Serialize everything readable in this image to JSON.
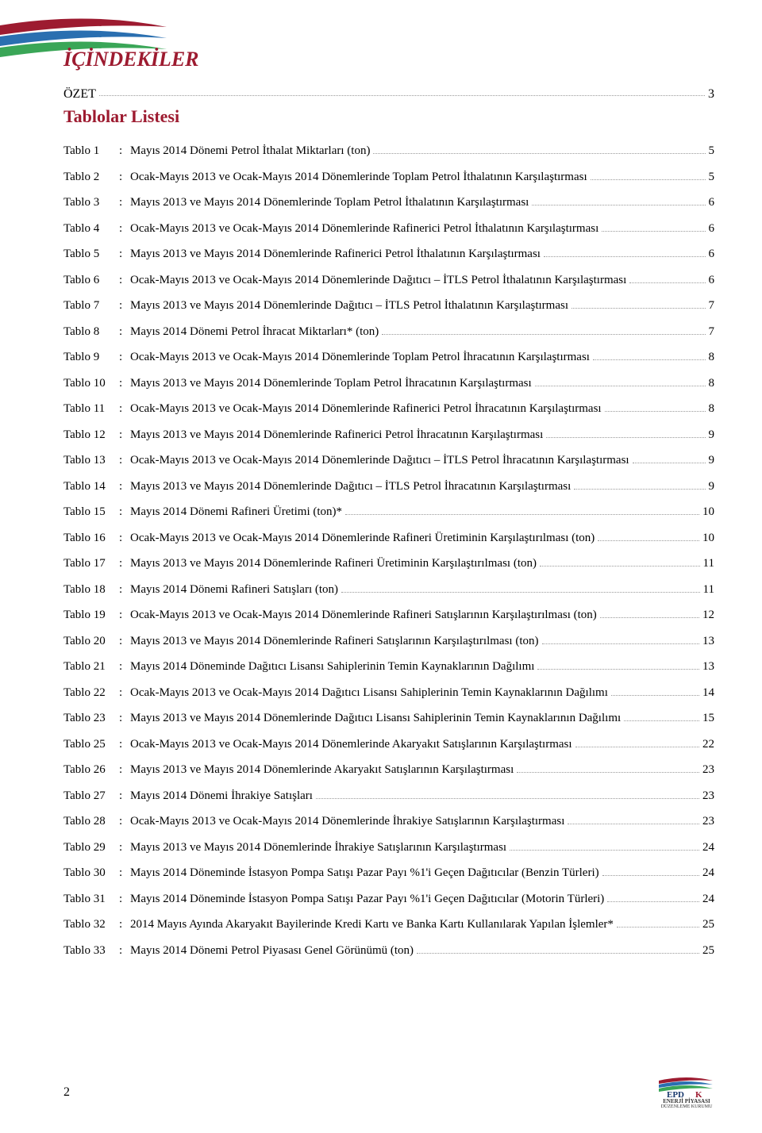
{
  "colors": {
    "brand_red": "#9d1b30",
    "logo_blue": "#2a6fb0",
    "logo_green": "#3aa657",
    "dot_color": "#999999",
    "text_color": "#111111",
    "bg": "#ffffff"
  },
  "page_title": "İÇİNDEKİLER",
  "ozet": {
    "label": "ÖZET",
    "page": "3"
  },
  "list_heading": "Tablolar Listesi",
  "footer": {
    "page_number": "2",
    "logo_text_top": "EPD",
    "logo_text_bottom": "ENERJİ PİYASASI",
    "logo_text_sub": "DÜZENLEME KURUMU"
  },
  "toc": [
    {
      "label": "Tablo 1",
      "title": "Mayıs 2014 Dönemi Petrol İthalat Miktarları (ton)",
      "page": "5"
    },
    {
      "label": "Tablo 2",
      "title": "Ocak-Mayıs 2013 ve Ocak-Mayıs 2014 Dönemlerinde Toplam Petrol İthalatının Karşılaştırması",
      "page": "5"
    },
    {
      "label": "Tablo 3",
      "title": "Mayıs 2013 ve Mayıs 2014 Dönemlerinde Toplam Petrol İthalatının Karşılaştırması",
      "page": "6"
    },
    {
      "label": "Tablo 4",
      "title": "Ocak-Mayıs 2013 ve Ocak-Mayıs 2014 Dönemlerinde Rafinerici Petrol İthalatının Karşılaştırması",
      "page": "6"
    },
    {
      "label": "Tablo 5",
      "title": "Mayıs 2013 ve Mayıs 2014 Dönemlerinde Rafinerici Petrol İthalatının Karşılaştırması",
      "page": "6"
    },
    {
      "label": "Tablo 6",
      "title": "Ocak-Mayıs 2013 ve Ocak-Mayıs 2014 Dönemlerinde Dağıtıcı – İTLS Petrol İthalatının Karşılaştırması",
      "page": "6"
    },
    {
      "label": "Tablo 7",
      "title": "Mayıs 2013 ve Mayıs 2014 Dönemlerinde Dağıtıcı – İTLS Petrol İthalatının Karşılaştırması",
      "page": "7"
    },
    {
      "label": "Tablo 8",
      "title": "Mayıs 2014 Dönemi Petrol İhracat Miktarları* (ton)",
      "page": "7"
    },
    {
      "label": "Tablo 9",
      "title": "Ocak-Mayıs 2013 ve Ocak-Mayıs 2014 Dönemlerinde Toplam Petrol İhracatının Karşılaştırması",
      "page": "8"
    },
    {
      "label": "Tablo 10",
      "title": "Mayıs 2013 ve Mayıs 2014 Dönemlerinde Toplam Petrol İhracatının Karşılaştırması",
      "page": "8"
    },
    {
      "label": "Tablo 11",
      "title": "Ocak-Mayıs 2013 ve Ocak-Mayıs 2014 Dönemlerinde Rafinerici Petrol İhracatının Karşılaştırması",
      "page": "8"
    },
    {
      "label": "Tablo 12",
      "title": "Mayıs 2013 ve Mayıs 2014 Dönemlerinde Rafinerici Petrol İhracatının Karşılaştırması",
      "page": "9"
    },
    {
      "label": "Tablo 13",
      "title": "Ocak-Mayıs 2013 ve Ocak-Mayıs 2014 Dönemlerinde Dağıtıcı – İTLS Petrol İhracatının Karşılaştırması",
      "page": "9"
    },
    {
      "label": "Tablo 14",
      "title": "Mayıs 2013 ve Mayıs 2014 Dönemlerinde Dağıtıcı – İTLS Petrol İhracatının Karşılaştırması",
      "page": "9"
    },
    {
      "label": "Tablo 15",
      "title": "Mayıs 2014 Dönemi Rafineri Üretimi (ton)*",
      "page": "10"
    },
    {
      "label": "Tablo 16",
      "title": "Ocak-Mayıs 2013 ve Ocak-Mayıs 2014 Dönemlerinde Rafineri Üretiminin Karşılaştırılması (ton)",
      "page": "10"
    },
    {
      "label": "Tablo 17",
      "title": "Mayıs 2013 ve Mayıs 2014 Dönemlerinde Rafineri Üretiminin Karşılaştırılması (ton)",
      "page": "11"
    },
    {
      "label": "Tablo 18",
      "title": "Mayıs 2014 Dönemi Rafineri Satışları (ton)",
      "page": "11"
    },
    {
      "label": "Tablo 19",
      "title": "Ocak-Mayıs 2013 ve Ocak-Mayıs 2014 Dönemlerinde Rafineri Satışlarının Karşılaştırılması (ton)",
      "page": "12"
    },
    {
      "label": "Tablo 20",
      "title": "Mayıs 2013 ve Mayıs 2014 Dönemlerinde Rafineri Satışlarının Karşılaştırılması (ton)",
      "page": "13"
    },
    {
      "label": "Tablo 21",
      "title": "Mayıs 2014 Döneminde Dağıtıcı Lisansı Sahiplerinin Temin Kaynaklarının Dağılımı",
      "page": "13"
    },
    {
      "label": "Tablo 22",
      "title": "Ocak-Mayıs 2013 ve Ocak-Mayıs 2014 Dağıtıcı Lisansı Sahiplerinin Temin Kaynaklarının Dağılımı",
      "page": "14"
    },
    {
      "label": "Tablo 23",
      "title": "Mayıs 2013 ve Mayıs 2014 Dönemlerinde Dağıtıcı Lisansı Sahiplerinin Temin Kaynaklarının Dağılımı",
      "page": "15"
    },
    {
      "label": "Tablo 25",
      "title": "Ocak-Mayıs 2013 ve Ocak-Mayıs 2014 Dönemlerinde Akaryakıt Satışlarının Karşılaştırması",
      "page": "22"
    },
    {
      "label": "Tablo 26",
      "title": "Mayıs 2013 ve Mayıs 2014 Dönemlerinde Akaryakıt Satışlarının Karşılaştırması",
      "page": "23"
    },
    {
      "label": "Tablo 27",
      "title": "Mayıs 2014 Dönemi İhrakiye Satışları",
      "page": "23"
    },
    {
      "label": "Tablo 28",
      "title": "Ocak-Mayıs 2013 ve Ocak-Mayıs 2014 Dönemlerinde İhrakiye Satışlarının Karşılaştırması",
      "page": "23"
    },
    {
      "label": "Tablo 29",
      "title": "Mayıs 2013 ve Mayıs 2014 Dönemlerinde İhrakiye Satışlarının Karşılaştırması",
      "page": "24"
    },
    {
      "label": "Tablo 30",
      "title": "Mayıs 2014 Döneminde İstasyon Pompa Satışı Pazar Payı %1'i Geçen Dağıtıcılar (Benzin Türleri)",
      "page": "24"
    },
    {
      "label": "Tablo 31",
      "title": "Mayıs 2014 Döneminde İstasyon Pompa Satışı Pazar Payı %1'i Geçen Dağıtıcılar (Motorin Türleri)",
      "page": "24"
    },
    {
      "label": "Tablo 32",
      "title": "2014 Mayıs Ayında Akaryakıt Bayilerinde Kredi Kartı ve Banka Kartı Kullanılarak Yapılan İşlemler*",
      "page": "25"
    },
    {
      "label": "Tablo 33",
      "title": "Mayıs 2014 Dönemi Petrol Piyasası Genel Görünümü (ton)",
      "page": "25"
    }
  ]
}
